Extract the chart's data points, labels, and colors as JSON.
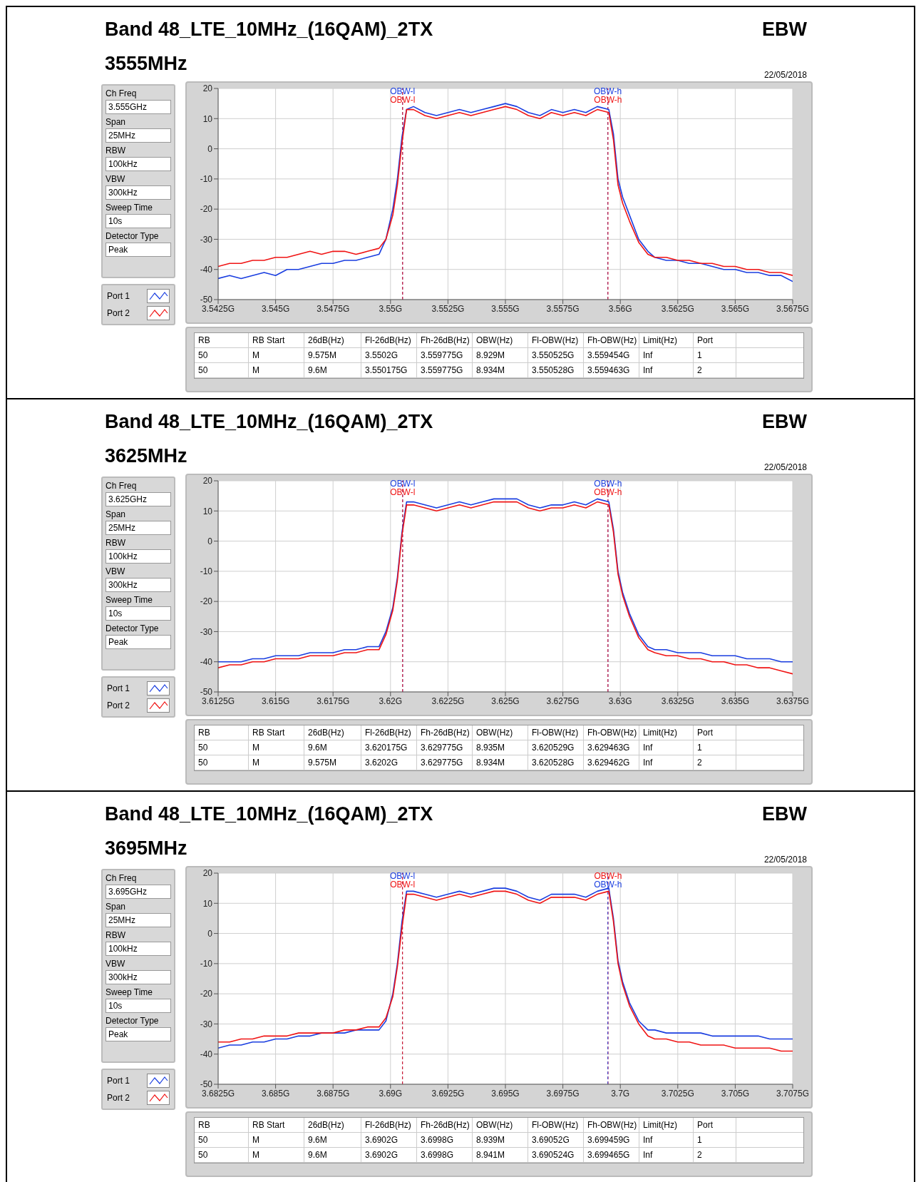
{
  "chart_data": [
    {
      "type": "line",
      "title": "Band 48_LTE_10MHz_(16QAM)_2TX",
      "subtitle": "3555MHz",
      "legend": "left",
      "grid": true,
      "annotations": [
        "EBW",
        "22/05/2018",
        "Ch Freq",
        "3.555GHz",
        "Span",
        "25MHz",
        "RBW",
        "100kHz",
        "VBW",
        "300kHz",
        "Sweep Time",
        "10s",
        "Detector Type",
        "Peak",
        "RB",
        "RB Start",
        "26dB(Hz)",
        "Fl-26dB(Hz)",
        "Fh-26dB(Hz)",
        "OBW(Hz)",
        "Fl-OBW(Hz)",
        "Fh-OBW(Hz)",
        "Limit(Hz)",
        "Port",
        "50",
        "M",
        "9.575M",
        "3.5502G",
        "3.559775G",
        "8.929M",
        "3.550525G",
        "3.559454G",
        "Inf",
        "1",
        "50",
        "M",
        "9.6M",
        "3.550175G",
        "3.559775G",
        "8.934M",
        "3.550528G",
        "3.559463G",
        "Inf",
        "2"
      ],
      "xlim": [
        3.5425,
        3.5675
      ],
      "ylim": [
        -50,
        20
      ],
      "yticks": [
        -50,
        -40,
        -30,
        -20,
        -10,
        0,
        10,
        20
      ],
      "xticks": [
        {
          "value": 3.5425,
          "label": "3.5425G"
        },
        {
          "value": 3.545,
          "label": "3.545G"
        },
        {
          "value": 3.5475,
          "label": "3.5475G"
        },
        {
          "value": 3.55,
          "label": "3.55G"
        },
        {
          "value": 3.5525,
          "label": "3.5525G"
        },
        {
          "value": 3.555,
          "label": "3.555G"
        },
        {
          "value": 3.5575,
          "label": "3.5575G"
        },
        {
          "value": 3.56,
          "label": "3.56G"
        },
        {
          "value": 3.5625,
          "label": "3.5625G"
        },
        {
          "value": 3.565,
          "label": "3.565G"
        },
        {
          "value": 3.5675,
          "label": "3.5675G"
        }
      ],
      "x": [
        3.5425,
        3.543,
        3.5435,
        3.544,
        3.5445,
        3.545,
        3.5455,
        3.546,
        3.5465,
        3.547,
        3.5475,
        3.548,
        3.5485,
        3.549,
        3.5495,
        3.5498,
        3.5501,
        3.5503,
        3.5505,
        3.5507,
        3.551,
        3.5515,
        3.552,
        3.5525,
        3.553,
        3.5535,
        3.554,
        3.5545,
        3.555,
        3.5555,
        3.556,
        3.5565,
        3.557,
        3.5575,
        3.558,
        3.5585,
        3.559,
        3.5595,
        3.5597,
        3.5599,
        3.5601,
        3.5604,
        3.5608,
        3.5612,
        3.5615,
        3.562,
        3.5625,
        3.563,
        3.5635,
        3.564,
        3.5645,
        3.565,
        3.5655,
        3.566,
        3.5665,
        3.567,
        3.5675
      ],
      "series": [
        {
          "name": "Port 1",
          "color": "#1a3ee0",
          "values": [
            -43,
            -42,
            -43,
            -42,
            -41,
            -42,
            -40,
            -40,
            -39,
            -38,
            -38,
            -37,
            -37,
            -36,
            -35,
            -30,
            -20,
            -10,
            4,
            13,
            14,
            12,
            11,
            12,
            13,
            12,
            13,
            14,
            15,
            14,
            12,
            11,
            13,
            12,
            13,
            12,
            14,
            13,
            5,
            -10,
            -16,
            -22,
            -30,
            -34,
            -36,
            -37,
            -37,
            -38,
            -38,
            -39,
            -40,
            -40,
            -41,
            -41,
            -42,
            -42,
            -44
          ]
        },
        {
          "name": "Port 2",
          "color": "#f01414",
          "values": [
            -39,
            -38,
            -38,
            -37,
            -37,
            -36,
            -36,
            -35,
            -34,
            -35,
            -34,
            -34,
            -35,
            -34,
            -33,
            -30,
            -22,
            -12,
            2,
            13,
            13,
            11,
            10,
            11,
            12,
            11,
            12,
            13,
            14,
            13,
            11,
            10,
            12,
            11,
            12,
            11,
            13,
            12,
            3,
            -12,
            -18,
            -24,
            -31,
            -35,
            -36,
            -36,
            -37,
            -37,
            -38,
            -38,
            -39,
            -39,
            -40,
            -40,
            -41,
            -41,
            -42
          ]
        }
      ],
      "ref_lines": [
        {
          "axis": "x",
          "value": 3.550525,
          "label": "OBW-l",
          "color": "#1a3ee0",
          "line_style": "dashed"
        },
        {
          "axis": "x",
          "value": 3.550528,
          "label": "OBW-l",
          "color": "#f01414",
          "line_style": "dashed"
        },
        {
          "axis": "x",
          "value": 3.559454,
          "label": "OBW-h",
          "color": "#1a3ee0",
          "line_style": "dashed"
        },
        {
          "axis": "x",
          "value": 3.559463,
          "label": "OBW-h",
          "color": "#f01414",
          "line_style": "dashed"
        }
      ]
    },
    {
      "type": "line",
      "title": "Band 48_LTE_10MHz_(16QAM)_2TX",
      "subtitle": "3625MHz",
      "legend": "left",
      "grid": true,
      "annotations": [
        "EBW",
        "22/05/2018",
        "Ch Freq",
        "3.625GHz",
        "Span",
        "25MHz",
        "RBW",
        "100kHz",
        "VBW",
        "300kHz",
        "Sweep Time",
        "10s",
        "Detector Type",
        "Peak",
        "RB",
        "RB Start",
        "26dB(Hz)",
        "Fl-26dB(Hz)",
        "Fh-26dB(Hz)",
        "OBW(Hz)",
        "Fl-OBW(Hz)",
        "Fh-OBW(Hz)",
        "Limit(Hz)",
        "Port",
        "50",
        "M",
        "9.6M",
        "3.620175G",
        "3.629775G",
        "8.935M",
        "3.620529G",
        "3.629463G",
        "Inf",
        "1",
        "50",
        "M",
        "9.575M",
        "3.6202G",
        "3.629775G",
        "8.934M",
        "3.620528G",
        "3.629462G",
        "Inf",
        "2"
      ],
      "xlim": [
        3.6125,
        3.6375
      ],
      "ylim": [
        -50,
        20
      ],
      "yticks": [
        -50,
        -40,
        -30,
        -20,
        -10,
        0,
        10,
        20
      ],
      "xticks": [
        {
          "value": 3.6125,
          "label": "3.6125G"
        },
        {
          "value": 3.615,
          "label": "3.615G"
        },
        {
          "value": 3.6175,
          "label": "3.6175G"
        },
        {
          "value": 3.62,
          "label": "3.62G"
        },
        {
          "value": 3.6225,
          "label": "3.6225G"
        },
        {
          "value": 3.625,
          "label": "3.625G"
        },
        {
          "value": 3.6275,
          "label": "3.6275G"
        },
        {
          "value": 3.63,
          "label": "3.63G"
        },
        {
          "value": 3.6325,
          "label": "3.6325G"
        },
        {
          "value": 3.635,
          "label": "3.635G"
        },
        {
          "value": 3.6375,
          "label": "3.6375G"
        }
      ],
      "x": [
        3.6125,
        3.613,
        3.6135,
        3.614,
        3.6145,
        3.615,
        3.6155,
        3.616,
        3.6165,
        3.617,
        3.6175,
        3.618,
        3.6185,
        3.619,
        3.6195,
        3.6198,
        3.6201,
        3.6203,
        3.6205,
        3.6207,
        3.621,
        3.6215,
        3.622,
        3.6225,
        3.623,
        3.6235,
        3.624,
        3.6245,
        3.625,
        3.6255,
        3.626,
        3.6265,
        3.627,
        3.6275,
        3.628,
        3.6285,
        3.629,
        3.6295,
        3.6297,
        3.6299,
        3.6301,
        3.6304,
        3.6308,
        3.6312,
        3.6315,
        3.632,
        3.6325,
        3.633,
        3.6335,
        3.634,
        3.6345,
        3.635,
        3.6355,
        3.636,
        3.6365,
        3.637,
        3.6375
      ],
      "series": [
        {
          "name": "Port 1",
          "color": "#1a3ee0",
          "values": [
            -40,
            -40,
            -40,
            -39,
            -39,
            -38,
            -38,
            -38,
            -37,
            -37,
            -37,
            -36,
            -36,
            -35,
            -35,
            -30,
            -22,
            -12,
            3,
            13,
            13,
            12,
            11,
            12,
            13,
            12,
            13,
            14,
            14,
            14,
            12,
            11,
            12,
            12,
            13,
            12,
            14,
            13,
            4,
            -10,
            -17,
            -24,
            -31,
            -35,
            -36,
            -36,
            -37,
            -37,
            -37,
            -38,
            -38,
            -38,
            -39,
            -39,
            -39,
            -40,
            -40
          ]
        },
        {
          "name": "Port 2",
          "color": "#f01414",
          "values": [
            -42,
            -41,
            -41,
            -40,
            -40,
            -39,
            -39,
            -39,
            -38,
            -38,
            -38,
            -37,
            -37,
            -36,
            -36,
            -31,
            -23,
            -13,
            2,
            12,
            12,
            11,
            10,
            11,
            12,
            11,
            12,
            13,
            13,
            13,
            11,
            10,
            11,
            11,
            12,
            11,
            13,
            12,
            3,
            -11,
            -18,
            -25,
            -32,
            -36,
            -37,
            -38,
            -38,
            -39,
            -39,
            -40,
            -40,
            -41,
            -41,
            -42,
            -42,
            -43,
            -44
          ]
        }
      ],
      "ref_lines": [
        {
          "axis": "x",
          "value": 3.620529,
          "label": "OBW-l",
          "color": "#1a3ee0",
          "line_style": "dashed"
        },
        {
          "axis": "x",
          "value": 3.620528,
          "label": "OBW-l",
          "color": "#f01414",
          "line_style": "dashed"
        },
        {
          "axis": "x",
          "value": 3.629463,
          "label": "OBW-h",
          "color": "#1a3ee0",
          "line_style": "dashed"
        },
        {
          "axis": "x",
          "value": 3.629462,
          "label": "OBW-h",
          "color": "#f01414",
          "line_style": "dashed"
        }
      ]
    },
    {
      "type": "line",
      "title": "Band 48_LTE_10MHz_(16QAM)_2TX",
      "subtitle": "3695MHz",
      "legend": "left",
      "grid": true,
      "annotations": [
        "EBW",
        "22/05/2018",
        "Ch Freq",
        "3.695GHz",
        "Span",
        "25MHz",
        "RBW",
        "100kHz",
        "VBW",
        "300kHz",
        "Sweep Time",
        "10s",
        "Detector Type",
        "Peak",
        "RB",
        "RB Start",
        "26dB(Hz)",
        "Fl-26dB(Hz)",
        "Fh-26dB(Hz)",
        "OBW(Hz)",
        "Fl-OBW(Hz)",
        "Fh-OBW(Hz)",
        "Limit(Hz)",
        "Port",
        "50",
        "M",
        "9.6M",
        "3.6902G",
        "3.6998G",
        "8.939M",
        "3.69052G",
        "3.699459G",
        "Inf",
        "1",
        "50",
        "M",
        "9.6M",
        "3.6902G",
        "3.6998G",
        "8.941M",
        "3.690524G",
        "3.699465G",
        "Inf",
        "2"
      ],
      "xlim": [
        3.6825,
        3.7075
      ],
      "ylim": [
        -50,
        20
      ],
      "yticks": [
        -50,
        -40,
        -30,
        -20,
        -10,
        0,
        10,
        20
      ],
      "xticks": [
        {
          "value": 3.6825,
          "label": "3.6825G"
        },
        {
          "value": 3.685,
          "label": "3.685G"
        },
        {
          "value": 3.6875,
          "label": "3.6875G"
        },
        {
          "value": 3.69,
          "label": "3.69G"
        },
        {
          "value": 3.6925,
          "label": "3.6925G"
        },
        {
          "value": 3.695,
          "label": "3.695G"
        },
        {
          "value": 3.6975,
          "label": "3.6975G"
        },
        {
          "value": 3.7,
          "label": "3.7G"
        },
        {
          "value": 3.7025,
          "label": "3.7025G"
        },
        {
          "value": 3.705,
          "label": "3.705G"
        },
        {
          "value": 3.7075,
          "label": "3.7075G"
        }
      ],
      "x": [
        3.6825,
        3.683,
        3.6835,
        3.684,
        3.6845,
        3.685,
        3.6855,
        3.686,
        3.6865,
        3.687,
        3.6875,
        3.688,
        3.6885,
        3.689,
        3.6895,
        3.6898,
        3.6901,
        3.6903,
        3.6905,
        3.6907,
        3.691,
        3.6915,
        3.692,
        3.6925,
        3.693,
        3.6935,
        3.694,
        3.6945,
        3.695,
        3.6955,
        3.696,
        3.6965,
        3.697,
        3.6975,
        3.698,
        3.6985,
        3.699,
        3.6995,
        3.6997,
        3.6999,
        3.7001,
        3.7004,
        3.7008,
        3.7012,
        3.7015,
        3.702,
        3.7025,
        3.703,
        3.7035,
        3.704,
        3.7045,
        3.705,
        3.7055,
        3.706,
        3.7065,
        3.707,
        3.7075
      ],
      "series": [
        {
          "name": "Port 1",
          "color": "#1a3ee0",
          "values": [
            -38,
            -37,
            -37,
            -36,
            -36,
            -35,
            -35,
            -34,
            -34,
            -33,
            -33,
            -33,
            -32,
            -32,
            -32,
            -29,
            -20,
            -10,
            4,
            14,
            14,
            13,
            12,
            13,
            14,
            13,
            14,
            15,
            15,
            14,
            12,
            11,
            13,
            13,
            13,
            12,
            14,
            15,
            5,
            -9,
            -16,
            -23,
            -29,
            -32,
            -32,
            -33,
            -33,
            -33,
            -33,
            -34,
            -34,
            -34,
            -34,
            -34,
            -35,
            -35,
            -35
          ]
        },
        {
          "name": "Port 2",
          "color": "#f01414",
          "values": [
            -36,
            -36,
            -35,
            -35,
            -34,
            -34,
            -34,
            -33,
            -33,
            -33,
            -33,
            -32,
            -32,
            -31,
            -31,
            -28,
            -21,
            -11,
            2,
            13,
            13,
            12,
            11,
            12,
            13,
            12,
            13,
            14,
            14,
            13,
            11,
            10,
            12,
            12,
            12,
            11,
            13,
            14,
            4,
            -10,
            -17,
            -24,
            -30,
            -34,
            -35,
            -35,
            -36,
            -36,
            -37,
            -37,
            -37,
            -38,
            -38,
            -38,
            -38,
            -39,
            -39
          ]
        }
      ],
      "ref_lines": [
        {
          "axis": "x",
          "value": 3.69052,
          "label": "OBW-l",
          "color": "#1a3ee0",
          "line_style": "dashed"
        },
        {
          "axis": "x",
          "value": 3.690524,
          "label": "OBW-l",
          "color": "#f01414",
          "line_style": "dashed"
        },
        {
          "axis": "x",
          "value": 3.699465,
          "label": "OBW-h",
          "color": "#f01414",
          "line_style": "dashed"
        },
        {
          "axis": "x",
          "value": 3.699459,
          "label": "OBW-h",
          "color": "#1a3ee0",
          "line_style": "dashed"
        }
      ]
    }
  ]
}
